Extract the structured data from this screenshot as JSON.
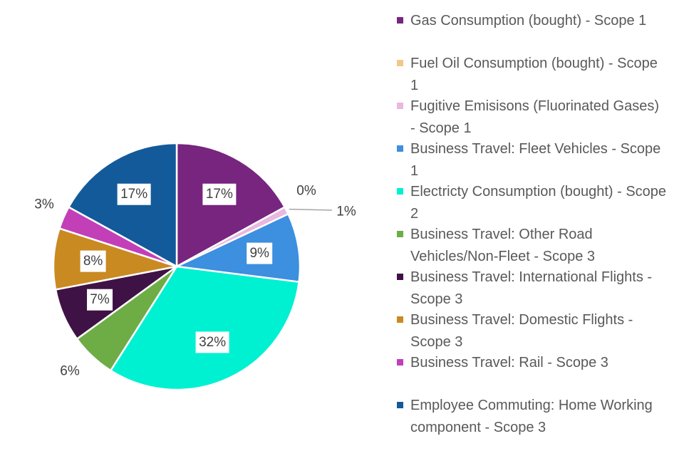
{
  "chart_data": {
    "type": "pie",
    "title": "",
    "start_angle": "top, clockwise",
    "legend_position": "right",
    "slices": [
      {
        "label": "Gas Consumption (bought) - Scope 1",
        "value": 17,
        "data_label": "17%",
        "color": "#77257f"
      },
      {
        "label": "Fuel Oil Consumption (bought) - Scope 1",
        "value": 0,
        "data_label": "0%",
        "color": "#f0c88a"
      },
      {
        "label": "Fugitive Emisisons (Fluorinated Gases) - Scope 1",
        "value": 1,
        "data_label": "1%",
        "color": "#e8b8e0"
      },
      {
        "label": "Business Travel: Fleet Vehicles - Scope 1",
        "value": 9,
        "data_label": "9%",
        "color": "#3d8fe0"
      },
      {
        "label": "Electricty Consumption (bought) - Scope 2",
        "value": 32,
        "data_label": "32%",
        "color": "#00f0d2"
      },
      {
        "label": "Business Travel: Other Road Vehicles/Non-Fleet - Scope 3",
        "value": 6,
        "data_label": "6%",
        "color": "#6ead46"
      },
      {
        "label": "Business Travel: International Flights - Scope 3",
        "value": 7,
        "data_label": "7%",
        "color": "#3f1245"
      },
      {
        "label": "Business Travel: Domestic Flights - Scope 3",
        "value": 8,
        "data_label": "8%",
        "color": "#c98a22"
      },
      {
        "label": "Business Travel: Rail - Scope 3",
        "value": 3,
        "data_label": "3%",
        "color": "#c23fb8"
      },
      {
        "label": "Employee Commuting: Home Working component - Scope 3",
        "value": 17,
        "data_label": "17%",
        "color": "#135a9a"
      }
    ]
  }
}
